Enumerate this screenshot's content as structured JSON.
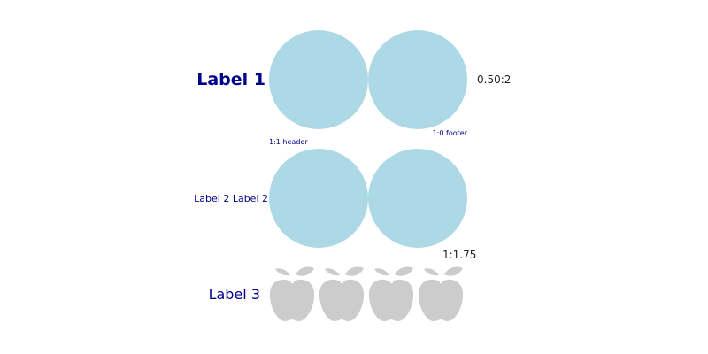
{
  "labels": {
    "label1": "Label 1",
    "label2": "Label 2 Label 2",
    "label3": "Label 3"
  },
  "notes": {
    "header": "1:1 header",
    "footer": "1:0 footer"
  },
  "ratios": {
    "row1": "0.50:2",
    "row2": "1:1.75"
  },
  "colors": {
    "circle_fill": "#add8e6",
    "apple_fill": "#cccccc",
    "label_color": "#00008b"
  },
  "icons": {
    "circle": "circle-icon",
    "apple": "apple-icon"
  }
}
